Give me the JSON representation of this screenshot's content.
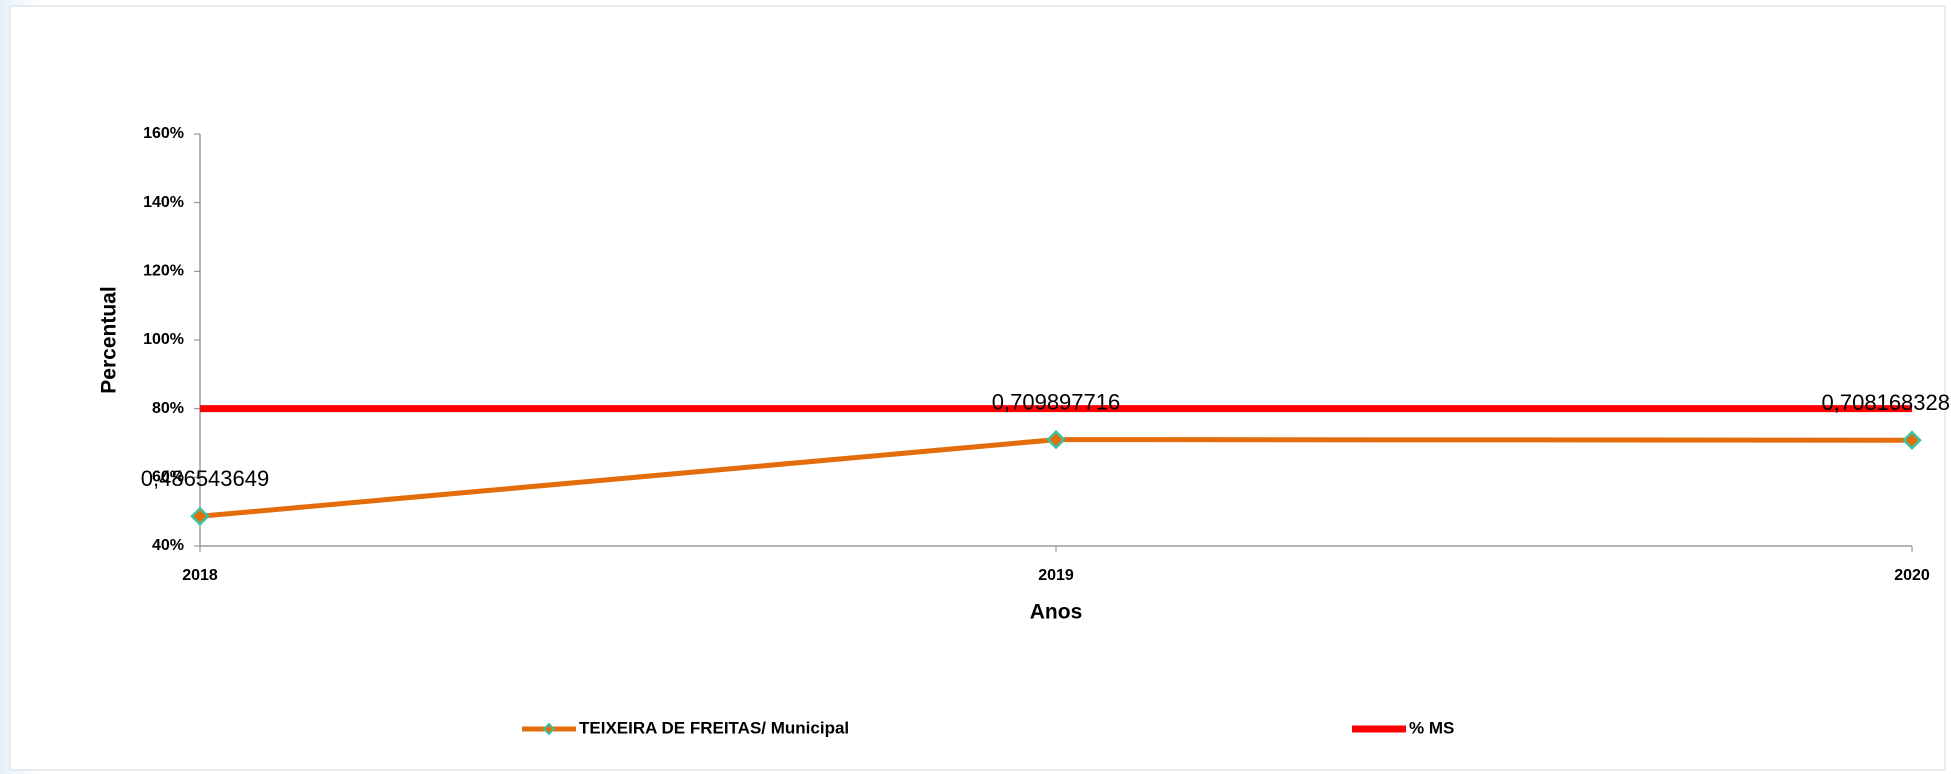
{
  "chart_data": {
    "type": "line",
    "xlabel": "Anos",
    "ylabel": "Percentual",
    "categories": [
      "2018",
      "2019",
      "2020"
    ],
    "series": [
      {
        "name": "TEIXEIRA DE FREITAS/ Municipal",
        "color": "#e46c0a",
        "marker": "diamond",
        "marker_color": "#3cc4a0",
        "values": [
          48.6543649,
          70.9897716,
          70.8168328
        ],
        "value_labels": [
          "0,486543649",
          "0,709897716",
          "0,708168328"
        ]
      },
      {
        "name": "% MS",
        "color": "#ff0000",
        "values": [
          80,
          80,
          80
        ]
      }
    ],
    "ylim": [
      40,
      160
    ],
    "yticks": [
      {
        "value": 40,
        "label": "40%"
      },
      {
        "value": 60,
        "label": "60%"
      },
      {
        "value": 80,
        "label": "80%"
      },
      {
        "value": 100,
        "label": "100%"
      },
      {
        "value": 120,
        "label": "120%"
      },
      {
        "value": 140,
        "label": "140%"
      },
      {
        "value": 160,
        "label": "160%"
      }
    ],
    "legend": "bottom",
    "grid": false
  }
}
